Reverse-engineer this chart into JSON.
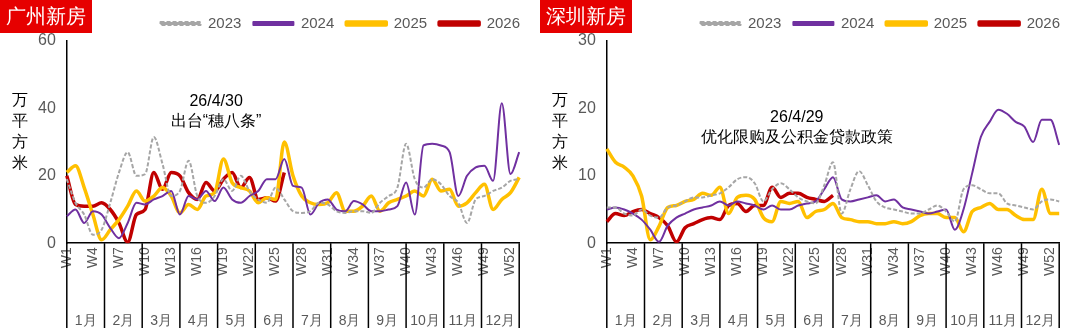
{
  "chart_data": [
    {
      "type": "line",
      "title": "广州新房",
      "ylabel": "万平方米",
      "legend": "top",
      "marker": "none",
      "ylim": [
        0,
        60
      ],
      "yticks": [
        0,
        20,
        40,
        60
      ],
      "categories": [
        "W1",
        null,
        null,
        "W4",
        null,
        null,
        "W7",
        null,
        null,
        "W10",
        null,
        null,
        "W13",
        null,
        null,
        "W16",
        null,
        null,
        "W19",
        null,
        null,
        "W22",
        null,
        null,
        "W25",
        null,
        null,
        "W28",
        null,
        null,
        "W31",
        null,
        null,
        "W34",
        null,
        null,
        "W37",
        null,
        null,
        "W40",
        null,
        null,
        "W43",
        null,
        null,
        "W46",
        null,
        null,
        "W49",
        null,
        null,
        "W52",
        null
      ],
      "series": [
        {
          "name": "2023",
          "color": "#a6a6a6",
          "line_style": "dashed",
          "values": [
            19,
            12,
            8.5,
            2.5,
            4,
            12,
            21,
            27,
            20,
            20.5,
            31.5,
            23.5,
            14,
            15.5,
            24.5,
            14,
            12,
            14,
            19,
            15.5,
            20,
            15.5,
            13,
            12,
            16.5,
            13,
            9.5,
            9,
            9.5,
            12,
            11.5,
            9.5,
            9,
            9.5,
            9.5,
            9,
            12,
            14,
            16.5,
            29.5,
            19,
            16.5,
            19,
            17.5,
            14,
            12,
            6,
            13,
            14,
            15.5,
            16.5,
            18.5,
            19
          ]
        },
        {
          "name": "2024",
          "color": "#7030a0",
          "line_style": "solid",
          "values": [
            8,
            10,
            6,
            9.5,
            8.5,
            4.5,
            1.5,
            6,
            12,
            11.5,
            13,
            14,
            15.5,
            8.5,
            14,
            13,
            15.5,
            12.5,
            16.5,
            13,
            12,
            14,
            15.5,
            19,
            19,
            25,
            17,
            16.5,
            8.5,
            12,
            13,
            10,
            9.5,
            12.5,
            11.5,
            9.5,
            9.5,
            10,
            11,
            18,
            8.5,
            29,
            29.5,
            29,
            27,
            14,
            20,
            22.5,
            23,
            18.5,
            41.5,
            20.5,
            27
          ]
        },
        {
          "name": "2025",
          "color": "#ffc000",
          "line_style": "solid",
          "values": [
            21,
            23,
            16.5,
            8.5,
            1,
            4,
            7,
            11,
            15.5,
            12.5,
            14,
            16.5,
            14,
            9,
            11.5,
            10,
            14,
            15,
            25,
            18,
            16.5,
            15.5,
            12,
            13.5,
            13,
            30,
            20,
            14,
            12,
            11.5,
            12,
            15,
            9.5,
            9.5,
            11,
            14,
            9.5,
            12,
            13,
            14,
            15.5,
            14,
            19,
            15.5,
            16,
            11,
            12,
            15,
            17.5,
            10,
            13,
            15,
            19.5
          ]
        },
        {
          "name": "2026",
          "color": "#c00000",
          "line_style": "solid",
          "values": [
            20,
            11.5,
            11,
            11,
            12,
            10,
            6,
            0.3,
            8.5,
            10,
            21,
            16,
            21,
            20,
            15,
            13,
            18,
            15.5,
            19,
            21,
            16.5,
            19.5,
            13,
            13.5,
            12.5,
            21,
            null,
            null,
            null,
            null,
            null,
            null,
            null,
            null,
            null,
            null,
            null,
            null,
            null,
            null,
            null,
            null,
            null,
            null,
            null,
            null,
            null,
            null,
            null,
            null,
            null,
            null,
            null
          ]
        }
      ],
      "annotations": [
        "26/4/30\n出台“穗八条”",
        "1月",
        "2月",
        "3月",
        "4月",
        "5月",
        "6月",
        "7月",
        "8月",
        "9月",
        "10月",
        "11月",
        "12月"
      ]
    },
    {
      "type": "line",
      "title": "深圳新房",
      "ylabel": "万平方米",
      "legend": "top",
      "marker": "none",
      "ylim": [
        0,
        30
      ],
      "yticks": [
        0,
        10,
        20,
        30
      ],
      "categories": [
        "W1",
        null,
        null,
        "W4",
        null,
        null,
        "W7",
        null,
        null,
        "W10",
        null,
        null,
        "W13",
        null,
        null,
        "W16",
        null,
        null,
        "W19",
        null,
        null,
        "W22",
        null,
        null,
        "W25",
        null,
        null,
        "W28",
        null,
        null,
        "W31",
        null,
        null,
        "W34",
        null,
        null,
        "W37",
        null,
        null,
        "W40",
        null,
        null,
        "W43",
        null,
        null,
        "W46",
        null,
        null,
        "W49",
        null,
        null,
        "W52",
        null
      ],
      "series": [
        {
          "name": "2023",
          "color": "#a6a6a6",
          "line_style": "dashed",
          "values": [
            5.3,
            5.3,
            4.4,
            4.1,
            5,
            4.1,
            3.8,
            5.3,
            5.6,
            6.2,
            6.8,
            6.8,
            7.1,
            7.4,
            8.3,
            9.5,
            9.8,
            8.9,
            6.2,
            8,
            8.9,
            8,
            6.8,
            6.2,
            5.9,
            8.6,
            12,
            4.4,
            8,
            10.7,
            8.6,
            6.2,
            5.3,
            5,
            4.7,
            4.4,
            4.4,
            5,
            5.6,
            4.7,
            3.2,
            8,
            8.6,
            8,
            7.4,
            7.4,
            5.9,
            5.6,
            5.3,
            5,
            6.2,
            6.5,
            6.2
          ]
        },
        {
          "name": "2024",
          "color": "#7030a0",
          "line_style": "solid",
          "values": [
            5,
            5.3,
            5,
            4.4,
            3.5,
            2,
            0.2,
            2.6,
            3.8,
            4.4,
            5,
            5.3,
            5.6,
            6.2,
            5.6,
            6.2,
            5.9,
            5.6,
            5,
            5.6,
            5,
            5,
            5.6,
            5.9,
            6.2,
            8,
            9.8,
            6.5,
            6.2,
            6.5,
            6.8,
            7.1,
            6.2,
            6.5,
            5.3,
            5,
            4.7,
            4.4,
            4.7,
            5,
            2,
            5,
            10.4,
            15.8,
            18,
            19.8,
            19.2,
            18,
            17.3,
            15,
            18.3,
            18.3,
            14.6
          ]
        },
        {
          "name": "2025",
          "color": "#ffc000",
          "line_style": "solid",
          "values": [
            14,
            12,
            11.3,
            10,
            7,
            0.5,
            2.5,
            5.3,
            5.6,
            6.2,
            6.5,
            7.4,
            7.1,
            8.3,
            4.4,
            6.8,
            7.1,
            6.5,
            3.8,
            3.2,
            6.2,
            5.9,
            6.2,
            3.8,
            4.7,
            5,
            5.9,
            3.8,
            3.5,
            3.2,
            3.2,
            2.9,
            2.9,
            3.2,
            2.9,
            3.2,
            4.1,
            4.4,
            4.4,
            3.8,
            3.8,
            1.7,
            4.7,
            5.3,
            5.9,
            5,
            5,
            4.1,
            3.5,
            3.5,
            8,
            4.4,
            4.4
          ]
        },
        {
          "name": "2026",
          "color": "#c00000",
          "line_style": "solid",
          "values": [
            3.2,
            4.4,
            4.1,
            4.7,
            5,
            4.4,
            3.8,
            2.6,
            0.2,
            2.3,
            2.9,
            3.5,
            3.8,
            3.5,
            5.6,
            5.9,
            4.7,
            5.6,
            5.6,
            8.3,
            6.8,
            7.4,
            7.4,
            6.8,
            6.5,
            6.2,
            7.1,
            null,
            null,
            null,
            null,
            null,
            null,
            null,
            null,
            null,
            null,
            null,
            null,
            null,
            null,
            null,
            null,
            null,
            null,
            null,
            null,
            null,
            null,
            null,
            null,
            null,
            null
          ]
        }
      ],
      "annotations": [
        "26/4/29\n优化限购及公积金贷款政策",
        "1月",
        "2月",
        "3月",
        "4月",
        "5月",
        "6月",
        "7月",
        "8月",
        "9月",
        "10月",
        "11月",
        "12月"
      ]
    }
  ]
}
